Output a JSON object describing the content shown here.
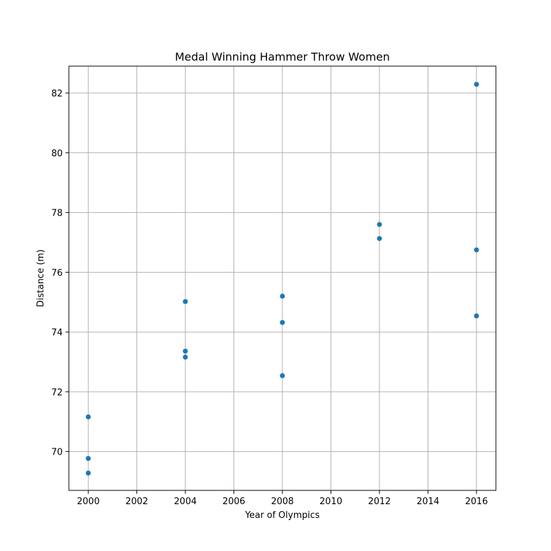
{
  "chart_data": {
    "type": "scatter",
    "title": "Medal Winning Hammer Throw Women",
    "xlabel": "Year of Olympics",
    "ylabel": "Distance (m)",
    "xlim": [
      1999.2,
      2016.8
    ],
    "ylim": [
      68.7,
      82.9
    ],
    "xticks": [
      2000,
      2002,
      2004,
      2006,
      2008,
      2010,
      2012,
      2014,
      2016
    ],
    "yticks": [
      70,
      72,
      74,
      76,
      78,
      80,
      82
    ],
    "grid": true,
    "marker_color": "#1f77b4",
    "points": [
      {
        "x": 2000,
        "y": 71.16
      },
      {
        "x": 2000,
        "y": 69.77
      },
      {
        "x": 2000,
        "y": 69.28
      },
      {
        "x": 2004,
        "y": 75.02
      },
      {
        "x": 2004,
        "y": 73.36
      },
      {
        "x": 2004,
        "y": 73.16
      },
      {
        "x": 2008,
        "y": 75.2
      },
      {
        "x": 2008,
        "y": 74.32
      },
      {
        "x": 2008,
        "y": 72.54
      },
      {
        "x": 2012,
        "y": 77.6
      },
      {
        "x": 2012,
        "y": 77.13
      },
      {
        "x": 2016,
        "y": 82.29
      },
      {
        "x": 2016,
        "y": 76.75
      },
      {
        "x": 2016,
        "y": 74.54
      }
    ]
  }
}
